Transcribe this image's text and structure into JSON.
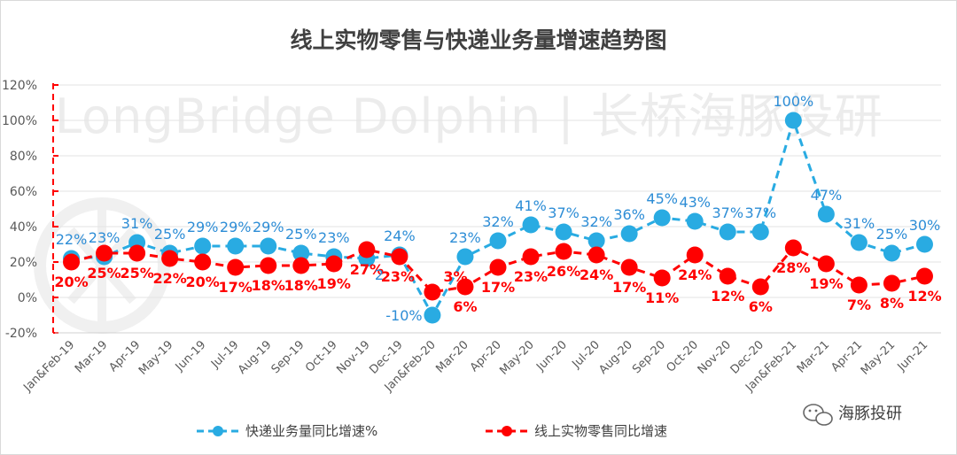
{
  "chart_data": {
    "type": "line",
    "title": "线上实物零售与快递业务量增速趋势图",
    "watermark": "LongBridge Dolphin | 长桥海豚投研",
    "brand": "海豚投研",
    "categories": [
      "Jan&Feb-19",
      "Mar-19",
      "Apr-19",
      "May-19",
      "Jun-19",
      "Jul-19",
      "Aug-19",
      "Sep-19",
      "Oct-19",
      "Nov-19",
      "Dec-19",
      "Jan&Feb-20",
      "Mar-20",
      "Apr-20",
      "May-20",
      "Jun-20",
      "Jul-20",
      "Aug-20",
      "Sep-20",
      "Oct-20",
      "Nov-20",
      "Dec-20",
      "Jan&Feb-21",
      "Mar-21",
      "Apr-21",
      "May-21",
      "Jun-21"
    ],
    "ylim": [
      -20,
      120
    ],
    "yticks": [
      -20,
      0,
      20,
      40,
      60,
      80,
      100,
      120
    ],
    "ytick_labels": [
      "-20%",
      "0%",
      "20%",
      "40%",
      "60%",
      "80%",
      "100%",
      "120%"
    ],
    "grid": true,
    "legend_position": "bottom",
    "series": [
      {
        "name": "快递业务量同比增速%",
        "color": "#29abe2",
        "label_color": "#2d8dd6",
        "values": [
          22,
          23,
          31,
          25,
          29,
          29,
          29,
          25,
          23,
          22,
          24,
          -10,
          23,
          32,
          41,
          37,
          32,
          36,
          45,
          43,
          37,
          37,
          100,
          47,
          31,
          25,
          30
        ],
        "data_labels": [
          "22%",
          "23%",
          "31%",
          "25%",
          "29%",
          "29%",
          "29%",
          "25%",
          "23%",
          "",
          "24%",
          "-10%",
          "23%",
          "32%",
          "41%",
          "37%",
          "32%",
          "36%",
          "45%",
          "43%",
          "37%",
          "37%",
          "100%",
          "47%",
          "31%",
          "25%",
          "30%"
        ]
      },
      {
        "name": "线上实物零售同比增速",
        "color": "#ff0000",
        "label_color": "#ff0000",
        "values": [
          20,
          25,
          25,
          22,
          20,
          17,
          18,
          18,
          19,
          27,
          23,
          3,
          6,
          17,
          23,
          26,
          24,
          17,
          11,
          24,
          12,
          6,
          28,
          19,
          7,
          8,
          12
        ],
        "data_labels": [
          "20%",
          "25%",
          "25%",
          "22%",
          "20%",
          "17%",
          "18%",
          "18%",
          "19%",
          "27%",
          "23%",
          "3%",
          "6%",
          "17%",
          "23%",
          "26%",
          "24%",
          "17%",
          "11%",
          "24%",
          "12%",
          "6%",
          "28%",
          "19%",
          "7%",
          "8%",
          "12%"
        ]
      }
    ],
    "stray_labels": [
      "2"
    ]
  }
}
